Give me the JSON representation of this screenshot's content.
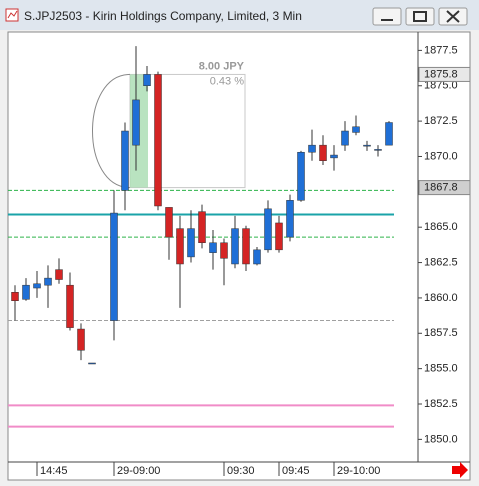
{
  "window": {
    "title": "S.JPJ2503 - Kirin Holdings Company, Limited, 3 Min"
  },
  "chart_data": {
    "type": "candlestick",
    "categories": [
      null,
      null,
      "14:45",
      null,
      null,
      null,
      null,
      null,
      null,
      "29-09:00",
      null,
      null,
      null,
      null,
      null,
      null,
      null,
      null,
      null,
      "09:30",
      null,
      null,
      null,
      null,
      "09:45",
      null,
      null,
      null,
      null,
      "29-10:00",
      null,
      null,
      null,
      null,
      null
    ],
    "open": [
      1860.4,
      1859.9,
      1860.7,
      1860.9,
      1862.0,
      1860.9,
      1857.8,
      1855.4,
      null,
      1858.4,
      1867.6,
      1870.8,
      1875.0,
      1875.8,
      1866.4,
      1864.9,
      1862.9,
      1866.1,
      1863.2,
      1863.9,
      1862.4,
      1864.9,
      1862.4,
      1863.4,
      1865.3,
      1864.3,
      1866.9,
      1870.3,
      1870.8,
      1869.9,
      1870.8,
      1871.7,
      1870.8,
      1870.5,
      1870.8
    ],
    "high": [
      1860.9,
      1861.4,
      1861.9,
      1862.3,
      1862.8,
      1861.8,
      1858.2,
      1855.4,
      null,
      1867.6,
      1872.4,
      1877.8,
      1876.4,
      1876.0,
      1866.4,
      1865.8,
      1866.2,
      1866.6,
      1864.8,
      1864.2,
      1865.8,
      1865.1,
      1863.6,
      1866.9,
      1865.8,
      1867.3,
      1870.4,
      1871.9,
      1871.5,
      1870.8,
      1872.5,
      1872.9,
      1871.1,
      1870.8,
      1872.5
    ],
    "low": [
      1858.4,
      1859.8,
      1860.0,
      1859.3,
      1861.0,
      1857.7,
      1855.6,
      1855.4,
      null,
      1857.0,
      1866.2,
      1869.0,
      1874.6,
      1866.2,
      1862.7,
      1859.3,
      1862.5,
      1863.5,
      1862.0,
      1860.9,
      1862.1,
      1861.9,
      1862.3,
      1863.2,
      1863.2,
      1864.0,
      1866.8,
      1869.7,
      1869.4,
      1869.0,
      1870.4,
      1871.5,
      1870.4,
      1870.0,
      1870.8
    ],
    "close": [
      1859.8,
      1860.9,
      1861.0,
      1861.4,
      1861.3,
      1857.9,
      1856.3,
      1855.4,
      null,
      1866.0,
      1871.8,
      1874.0,
      1875.8,
      1866.5,
      1864.3,
      1862.4,
      1864.9,
      1863.9,
      1863.9,
      1862.8,
      1864.9,
      1862.4,
      1863.4,
      1866.3,
      1863.4,
      1866.9,
      1870.3,
      1870.8,
      1869.7,
      1870.1,
      1871.8,
      1872.1,
      1870.8,
      1870.5,
      1872.4
    ],
    "up_color": "#1f6fd6",
    "down_color": "#d42424",
    "ylim": [
      1848.4,
      1878.8
    ],
    "yticks": [
      1877.5,
      {
        "value": 1875,
        "label": "1875.0"
      },
      1872.5,
      {
        "value": 1870,
        "label": "1870.0"
      },
      1867.5,
      {
        "value": 1865,
        "label": "1865.0"
      },
      1862.5,
      {
        "value": 1860,
        "label": "1860.0"
      },
      1857.5,
      {
        "value": 1855,
        "label": "1855.0"
      },
      1852.5,
      {
        "value": 1850,
        "label": "1850.0"
      }
    ],
    "levels": [
      {
        "value": 1867.6,
        "color": "#2db34a",
        "dashed": true
      },
      {
        "value": 1865.9,
        "color": "#1aa3a8",
        "dashed": false
      },
      {
        "value": 1864.3,
        "color": "#2db34a",
        "dashed": true
      },
      {
        "value": 1858.4,
        "color": "#a0a0a0",
        "dashed": true
      },
      {
        "value": 1852.4,
        "color": "#f08cc8",
        "dashed": false
      },
      {
        "value": 1850.9,
        "color": "#f08cc8",
        "dashed": false
      }
    ],
    "price_tags": [
      1875.8,
      1867.8
    ],
    "measure": {
      "from": 1867.8,
      "to": 1875.8,
      "change": "8.00 JPY",
      "percent": "0.43 %"
    }
  }
}
